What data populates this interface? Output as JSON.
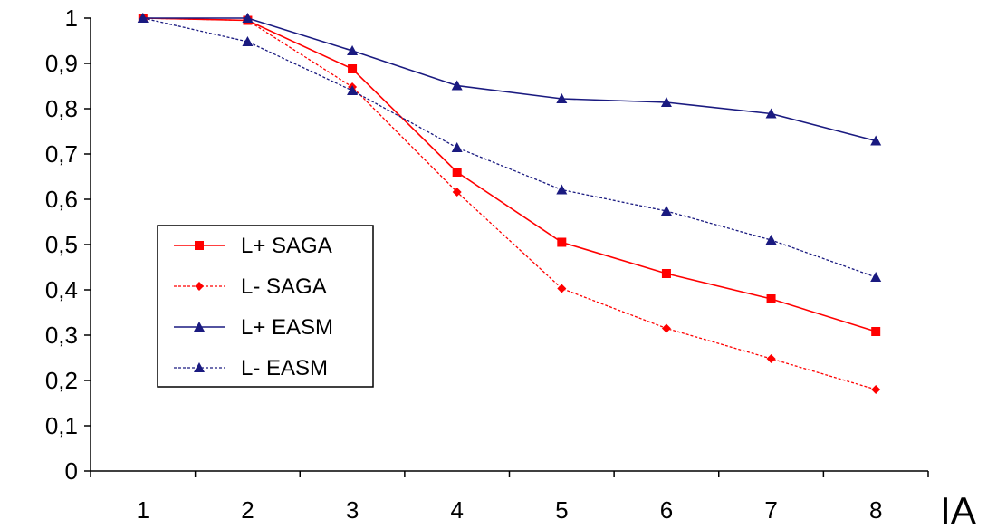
{
  "chart_data": {
    "type": "line",
    "title": "",
    "xlabel": "IA",
    "ylabel": "",
    "x": [
      1,
      2,
      3,
      4,
      5,
      6,
      7,
      8
    ],
    "ylim": [
      0,
      1
    ],
    "yticks": [
      "0",
      "0,1",
      "0,2",
      "0,3",
      "0,4",
      "0,5",
      "0,6",
      "0,7",
      "0,8",
      "0,9",
      "1"
    ],
    "xticks": [
      "1",
      "2",
      "3",
      "4",
      "5",
      "6",
      "7",
      "8"
    ],
    "grid": false,
    "legend_position": "left-center",
    "series": [
      {
        "name": "L+ SAGA",
        "values": [
          1.0,
          0.995,
          0.888,
          0.66,
          0.505,
          0.436,
          0.38,
          0.308
        ],
        "color": "#ff0000",
        "dash": "solid",
        "marker": "square"
      },
      {
        "name": "L- SAGA",
        "values": [
          1.0,
          0.995,
          0.848,
          0.616,
          0.403,
          0.315,
          0.248,
          0.18
        ],
        "color": "#ff0000",
        "dash": "dotted",
        "marker": "diamond"
      },
      {
        "name": "L+ EASM",
        "values": [
          1.0,
          1.0,
          0.928,
          0.851,
          0.822,
          0.814,
          0.789,
          0.729
        ],
        "color": "#1a1a80",
        "dash": "solid",
        "marker": "triangle"
      },
      {
        "name": "L- EASM",
        "values": [
          1.0,
          0.948,
          0.84,
          0.714,
          0.621,
          0.574,
          0.51,
          0.428
        ],
        "color": "#1a1a80",
        "dash": "dotted",
        "marker": "triangle"
      }
    ]
  }
}
